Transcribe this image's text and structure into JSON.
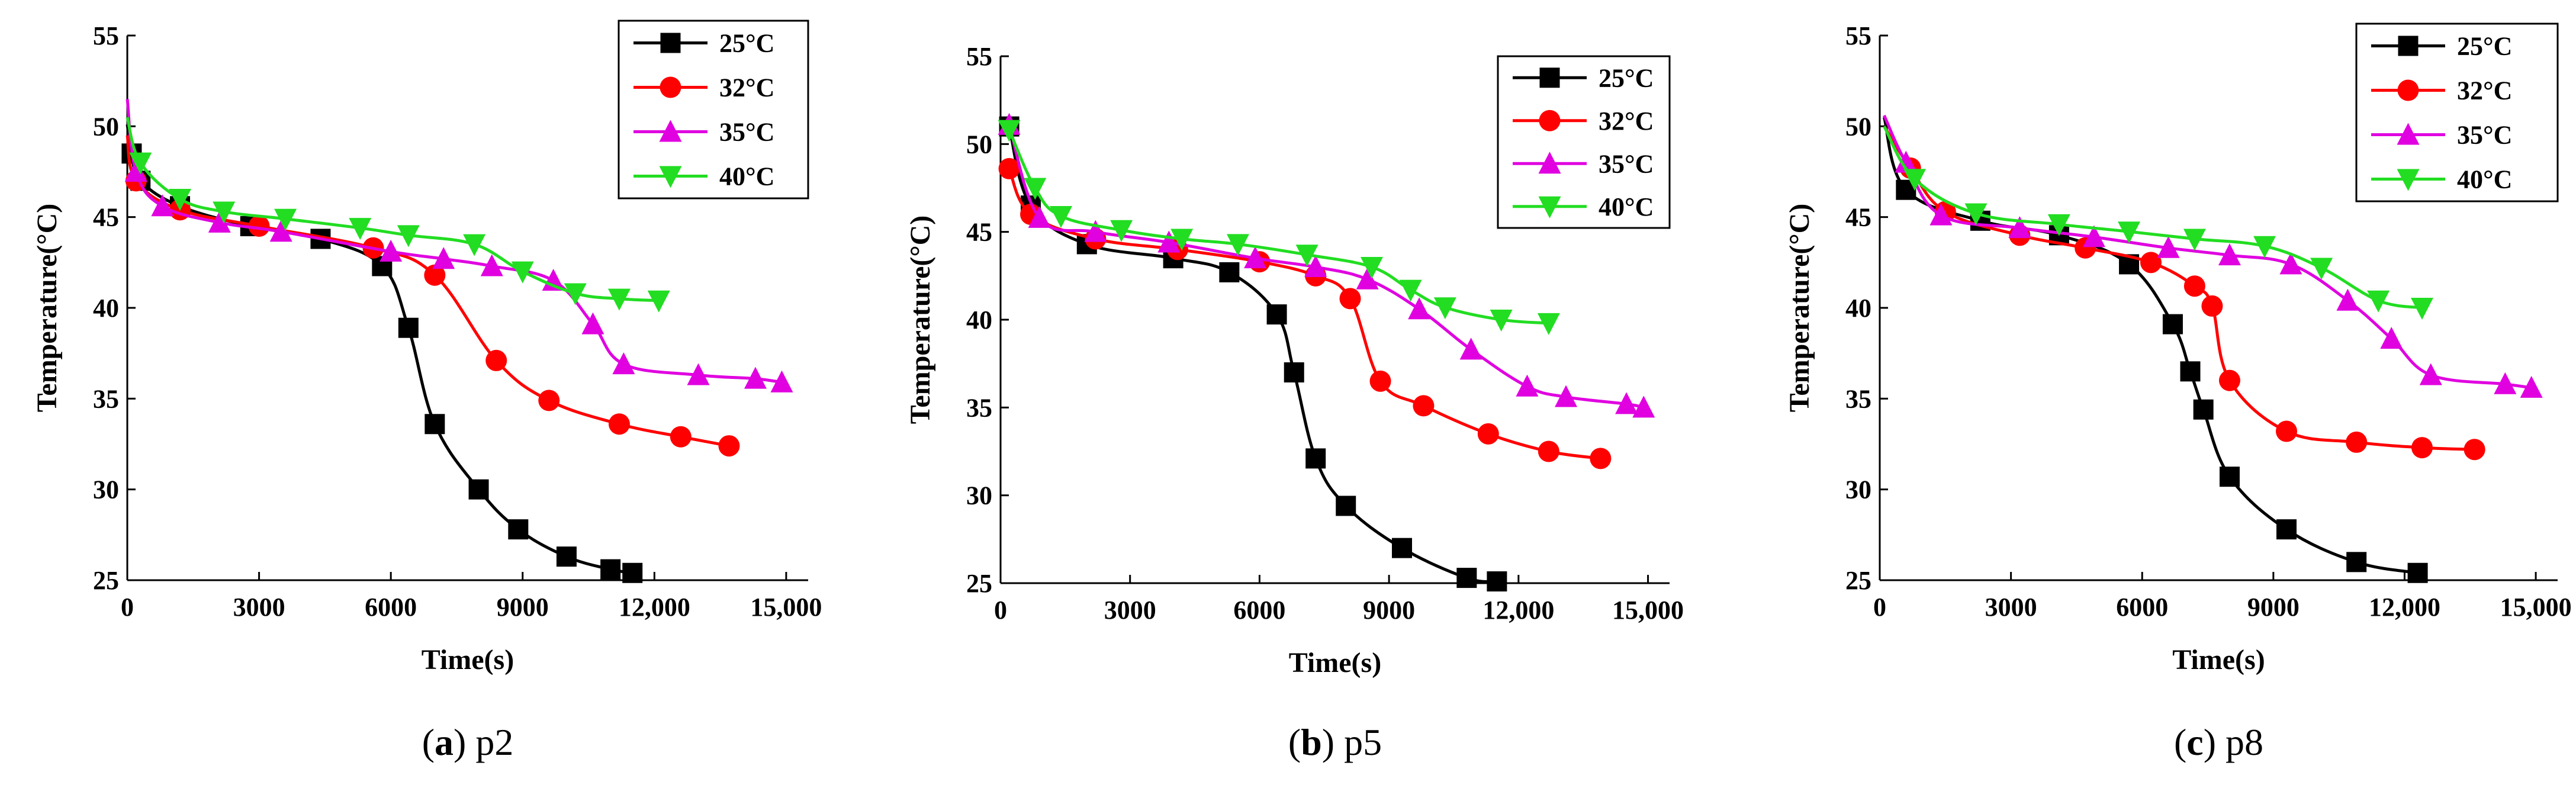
{
  "colors": {
    "25°C": "#000000",
    "32°C": "#ff0000",
    "35°C": "#e000e0",
    "40°C": "#22dd22"
  },
  "markers": {
    "25°C": "square",
    "32°C": "circle",
    "35°C": "triangle-up",
    "40°C": "triangle-down"
  },
  "chart_data": [
    {
      "type": "line",
      "caption_letter": "a",
      "caption_text": "p2",
      "xlabel": "Time(s)",
      "ylabel": "Temperature(°C)",
      "xlim": [
        0,
        15500
      ],
      "ylim": [
        25,
        55
      ],
      "xticks": [
        0,
        3000,
        6000,
        9000,
        12000,
        15000
      ],
      "xtick_labels": [
        "0",
        "3000",
        "6000",
        "9000",
        "12,000",
        "15,000"
      ],
      "yticks": [
        25,
        30,
        35,
        40,
        45,
        50,
        55
      ],
      "ytick_labels": [
        "25",
        "30",
        "35",
        "40",
        "45",
        "50",
        "55"
      ],
      "legend_position": "top-right",
      "series": [
        {
          "name": "25°C",
          "x": [
            0,
            100,
            300,
            1200,
            2800,
            4400,
            5800,
            6400,
            7000,
            8000,
            8900,
            10000,
            11000,
            11500
          ],
          "y": [
            50.1,
            48.5,
            47.0,
            45.6,
            44.5,
            43.8,
            42.3,
            38.9,
            33.6,
            30.0,
            27.8,
            26.3,
            25.6,
            25.4
          ]
        },
        {
          "name": "32°C",
          "x": [
            0,
            200,
            1200,
            3000,
            5600,
            7000,
            8400,
            9600,
            11200,
            12600,
            13700
          ],
          "y": [
            49.5,
            47.0,
            45.4,
            44.5,
            43.3,
            41.8,
            37.1,
            34.9,
            33.6,
            32.9,
            32.4
          ]
        },
        {
          "name": "35°C",
          "x": [
            0,
            200,
            800,
            2100,
            3500,
            6000,
            7200,
            8300,
            9700,
            10600,
            11300,
            13000,
            14300,
            14900
          ],
          "y": [
            51.5,
            47.5,
            45.6,
            44.7,
            44.2,
            43.1,
            42.7,
            42.3,
            41.5,
            39.1,
            36.9,
            36.3,
            36.1,
            35.9
          ]
        },
        {
          "name": "40°C",
          "x": [
            0,
            300,
            1200,
            2200,
            3600,
            5300,
            6400,
            7900,
            9000,
            10200,
            11200,
            12100
          ],
          "y": [
            50.5,
            48.0,
            46.0,
            45.3,
            44.9,
            44.4,
            44.0,
            43.5,
            42.0,
            40.8,
            40.5,
            40.4
          ]
        }
      ]
    },
    {
      "type": "line",
      "caption_letter": "b",
      "caption_text": "p5",
      "xlabel": "Time(s)",
      "ylabel": "Temperature(°C)",
      "xlim": [
        0,
        15500
      ],
      "ylim": [
        25,
        55
      ],
      "xticks": [
        0,
        3000,
        6000,
        9000,
        12000,
        15000
      ],
      "xtick_labels": [
        "0",
        "3000",
        "6000",
        "9000",
        "12,000",
        "15,000"
      ],
      "yticks": [
        25,
        30,
        35,
        40,
        45,
        50,
        55
      ],
      "ytick_labels": [
        "25",
        "30",
        "35",
        "40",
        "45",
        "50",
        "55"
      ],
      "legend_position": "top-right",
      "series": [
        {
          "name": "25°C",
          "x": [
            200,
            700,
            2000,
            4000,
            5300,
            6400,
            6800,
            7300,
            8000,
            9300,
            10800,
            11500
          ],
          "y": [
            51.0,
            46.5,
            44.3,
            43.5,
            42.7,
            40.3,
            37.0,
            32.1,
            29.4,
            27.0,
            25.3,
            25.1
          ]
        },
        {
          "name": "32°C",
          "x": [
            200,
            700,
            2200,
            4100,
            6000,
            7300,
            8100,
            8800,
            9800,
            11300,
            12700,
            13900
          ],
          "y": [
            48.6,
            46.0,
            44.6,
            44.0,
            43.3,
            42.5,
            41.2,
            36.5,
            35.1,
            33.5,
            32.5,
            32.1
          ]
        },
        {
          "name": "35°C",
          "x": [
            200,
            900,
            2200,
            3900,
            5900,
            7300,
            8500,
            9700,
            10900,
            12200,
            13100,
            14500,
            14900
          ],
          "y": [
            51.1,
            45.8,
            45.0,
            44.4,
            43.5,
            43.0,
            42.3,
            40.6,
            38.3,
            36.2,
            35.6,
            35.2,
            35.0
          ]
        },
        {
          "name": "40°C",
          "x": [
            200,
            800,
            1400,
            2800,
            4200,
            5500,
            7100,
            8600,
            9500,
            10300,
            11600,
            12700
          ],
          "y": [
            50.8,
            47.5,
            45.9,
            45.1,
            44.6,
            44.3,
            43.7,
            43.0,
            41.7,
            40.7,
            40.0,
            39.8
          ]
        }
      ]
    },
    {
      "type": "line",
      "caption_letter": "c",
      "caption_text": "p8",
      "xlabel": "Time(s)",
      "ylabel": "Temperature(°C)",
      "xlim": [
        0,
        15500
      ],
      "ylim": [
        25,
        55
      ],
      "xticks": [
        0,
        3000,
        6000,
        9000,
        12000,
        15000
      ],
      "xtick_labels": [
        "0",
        "3000",
        "6000",
        "9000",
        "12,000",
        "15,000"
      ],
      "yticks": [
        25,
        30,
        35,
        40,
        45,
        50,
        55
      ],
      "ytick_labels": [
        "25",
        "30",
        "35",
        "40",
        "45",
        "50",
        "55"
      ],
      "legend_position": "top-right",
      "series": [
        {
          "name": "25°C",
          "x": [
            100,
            600,
            2300,
            4100,
            5700,
            6700,
            7100,
            7400,
            8000,
            9300,
            10900,
            12300
          ],
          "y": [
            50.5,
            46.5,
            44.8,
            44.0,
            42.4,
            39.1,
            36.5,
            34.4,
            30.7,
            27.8,
            26.0,
            25.4
          ]
        },
        {
          "name": "32°C",
          "x": [
            100,
            700,
            1500,
            3200,
            4700,
            6200,
            7200,
            7600,
            8000,
            9300,
            10900,
            12400,
            13600
          ],
          "y": [
            50.0,
            47.7,
            45.3,
            44.0,
            43.3,
            42.5,
            41.2,
            40.1,
            36.0,
            33.2,
            32.6,
            32.3,
            32.2
          ]
        },
        {
          "name": "35°C",
          "x": [
            100,
            600,
            1400,
            3200,
            4900,
            6600,
            8000,
            9400,
            10700,
            11700,
            12600,
            14300,
            14900
          ],
          "y": [
            50.6,
            48.0,
            45.1,
            44.4,
            43.9,
            43.3,
            42.9,
            42.4,
            40.4,
            38.3,
            36.3,
            35.8,
            35.6
          ]
        },
        {
          "name": "40°C",
          "x": [
            100,
            800,
            2200,
            4100,
            5700,
            7200,
            8800,
            10100,
            11400,
            12400
          ],
          "y": [
            50.0,
            47.1,
            45.2,
            44.6,
            44.2,
            43.8,
            43.4,
            42.2,
            40.4,
            40.0
          ]
        }
      ]
    }
  ]
}
